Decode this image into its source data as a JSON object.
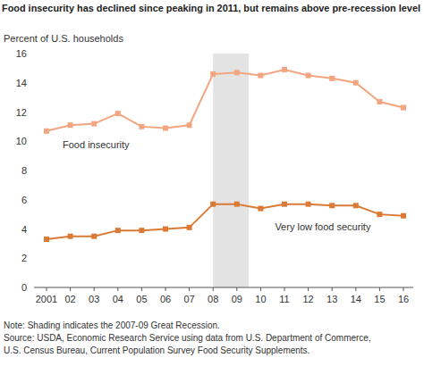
{
  "chart_data": {
    "type": "line",
    "title": "Food insecurity has declined since peaking in 2011, but remains above pre-recession level",
    "y_label": "Percent of U.S. households",
    "categories": [
      "2001",
      "02",
      "03",
      "04",
      "05",
      "06",
      "07",
      "08",
      "09",
      "10",
      "11",
      "12",
      "13",
      "14",
      "15",
      "16"
    ],
    "series": [
      {
        "name": "Food insecurity",
        "color": "#f2a57f",
        "marker": "square",
        "line_style": "solid",
        "values": [
          10.7,
          11.1,
          11.2,
          11.9,
          11.0,
          10.9,
          11.1,
          14.6,
          14.7,
          14.5,
          14.9,
          14.5,
          14.3,
          14.0,
          12.7,
          12.3
        ]
      },
      {
        "name": "Very low food security",
        "color": "#db7a35",
        "marker": "square",
        "line_style": "solid",
        "values": [
          3.3,
          3.5,
          3.5,
          3.9,
          3.9,
          4.0,
          4.1,
          5.7,
          5.7,
          5.4,
          5.7,
          5.7,
          5.6,
          5.6,
          5.0,
          4.9
        ]
      }
    ],
    "shading": {
      "from": "08",
      "to": "09",
      "color": "#e3e3e3"
    },
    "ylim": [
      0,
      16
    ],
    "yticks": [
      0,
      2,
      4,
      6,
      8,
      10,
      12,
      14,
      16
    ],
    "grid": false,
    "notes": [
      "Note: Shading indicates the 2007-09 Great Recession.",
      "Source: USDA, Economic Research Service using data from U.S. Department of Commerce,",
      "U.S. Census Bureau, Current Population Survey Food Security Supplements."
    ]
  }
}
